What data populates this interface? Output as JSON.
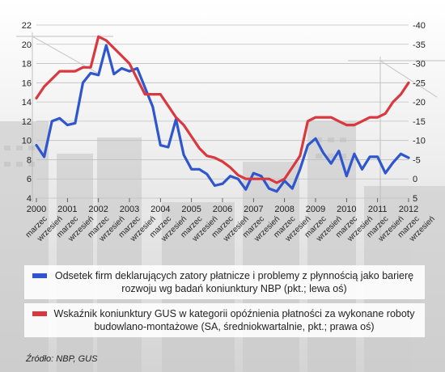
{
  "chart_data": {
    "type": "line",
    "title": "",
    "x_tick_labels": [
      "marzec",
      "wrzesień",
      "marzec",
      "wrzesień",
      "marzec",
      "wrzesień",
      "marzec",
      "wrzesień",
      "marzec",
      "wrzesień",
      "marzec",
      "wrzesień",
      "marzec",
      "wrzesień",
      "marzec",
      "wrzesień",
      "marzec",
      "wrzesień",
      "marzec",
      "wrzesień",
      "marzec",
      "wrzesień",
      "marzec",
      "wrzesień",
      "marzec",
      "wrzesień"
    ],
    "year_labels": [
      "2000",
      "2001",
      "2002",
      "2003",
      "2004",
      "2005",
      "2006",
      "2007",
      "2008",
      "2009",
      "2010",
      "2011",
      "2012"
    ],
    "left_axis": {
      "ylim": [
        4,
        22
      ],
      "ticks": [
        "4",
        "6",
        "8",
        "10",
        "12",
        "14",
        "16",
        "18",
        "20",
        "22"
      ]
    },
    "right_axis": {
      "ylim": [
        5,
        -40
      ],
      "reversed": true,
      "ticks": [
        "5",
        "0",
        "-5",
        "-10",
        "-15",
        "-20",
        "-25",
        "-30",
        "-35",
        "-40"
      ]
    },
    "x_range": [
      2000.0,
      2012.0
    ],
    "series": [
      {
        "name": "Odsetek firm deklarujących zatory płatnicze i problemy z płynnością jako barierę rozwoju wg badań koniunktury NBP (pkt.; lewa oś)",
        "color": "#2f56cc",
        "axis": "left",
        "x": [
          2000.0,
          2000.25,
          2000.5,
          2000.75,
          2001.0,
          2001.25,
          2001.5,
          2001.75,
          2002.0,
          2002.25,
          2002.5,
          2002.75,
          2003.0,
          2003.25,
          2003.5,
          2003.75,
          2004.0,
          2004.25,
          2004.5,
          2004.75,
          2005.0,
          2005.25,
          2005.5,
          2005.75,
          2006.0,
          2006.25,
          2006.5,
          2006.75,
          2007.0,
          2007.25,
          2007.5,
          2007.75,
          2008.0,
          2008.25,
          2008.5,
          2008.75,
          2009.0,
          2009.25,
          2009.5,
          2009.75,
          2010.0,
          2010.25,
          2010.5,
          2010.75,
          2011.0,
          2011.25,
          2011.5,
          2011.75,
          2012.0
        ],
        "values": [
          9.5,
          8.3,
          12.0,
          12.3,
          11.6,
          11.8,
          16.0,
          17.0,
          16.8,
          19.9,
          16.9,
          17.5,
          17.2,
          17.5,
          15.5,
          13.5,
          9.5,
          9.3,
          12.2,
          8.5,
          7.0,
          7.0,
          6.5,
          5.3,
          5.5,
          6.3,
          6.0,
          4.9,
          6.6,
          6.3,
          5.0,
          4.7,
          5.8,
          5.0,
          7.0,
          9.5,
          10.2,
          8.7,
          7.6,
          8.9,
          6.3,
          8.6,
          7.0,
          8.3,
          8.3,
          6.6,
          7.7,
          8.6,
          8.2
        ]
      },
      {
        "name": "Wskaźnik koniunktury GUS w kategorii opóźnienia płatności za wykonane roboty budowlano-montażowe (SA, średniokwartalnie, pkt.; prawa oś)",
        "color": "#d9383f",
        "axis": "right",
        "x": [
          2000.0,
          2000.25,
          2000.5,
          2000.75,
          2001.0,
          2001.25,
          2001.5,
          2001.75,
          2002.0,
          2002.25,
          2002.5,
          2002.75,
          2003.0,
          2003.25,
          2003.5,
          2003.75,
          2004.0,
          2004.25,
          2004.5,
          2004.75,
          2005.0,
          2005.25,
          2005.5,
          2005.75,
          2006.0,
          2006.25,
          2006.5,
          2006.75,
          2007.0,
          2007.25,
          2007.5,
          2007.75,
          2008.0,
          2008.25,
          2008.5,
          2008.75,
          2009.0,
          2009.25,
          2009.5,
          2009.75,
          2010.0,
          2010.25,
          2010.5,
          2010.75,
          2011.0,
          2011.25,
          2011.5,
          2011.75,
          2012.0
        ],
        "values": [
          -21,
          -24,
          -26,
          -28,
          -28,
          -28,
          -29,
          -29,
          -37,
          -36,
          -34,
          -32,
          -30,
          -26,
          -22,
          -22,
          -22,
          -19,
          -16,
          -14,
          -11,
          -8,
          -6,
          -5.5,
          -4.5,
          -3,
          -1,
          0,
          0,
          0,
          0,
          1,
          0,
          -3,
          -6,
          -15,
          -16,
          -16,
          -16,
          -15,
          -14,
          -14,
          -15,
          -16,
          -16,
          -17,
          -20,
          -22,
          -25
        ]
      }
    ]
  },
  "legend": {
    "series1": "Odsetek firm deklarujących zatory płatnicze i problemy z płynnością jako barierę rozwoju wg badań koniunktury NBP (pkt.; lewa oś)",
    "series2": "Wskaźnik koniunktury GUS w kategorii opóźnienia płatności za wykonane roboty budowlano-montażowe (SA, średniokwartalnie, pkt.; prawa oś)"
  },
  "source": "Źródło: NBP, GUS"
}
